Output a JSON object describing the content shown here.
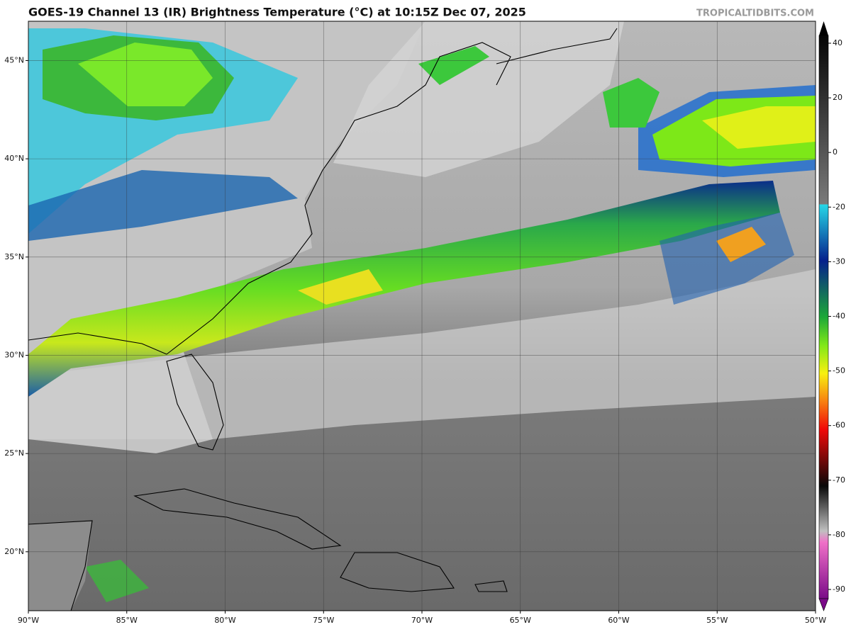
{
  "header": {
    "title": "GOES-19 Channel 13 (IR) Brightness Temperature (°C) at 10:15Z Dec 07, 2025",
    "source": "TROPICALTIDBITS.COM"
  },
  "map": {
    "lonlim": [
      -90,
      -50
    ],
    "latlim": [
      17,
      47
    ],
    "lon_ticks": [
      {
        "value": -90,
        "label": "90°W"
      },
      {
        "value": -85,
        "label": "85°W"
      },
      {
        "value": -80,
        "label": "80°W"
      },
      {
        "value": -75,
        "label": "75°W"
      },
      {
        "value": -70,
        "label": "70°W"
      },
      {
        "value": -65,
        "label": "65°W"
      },
      {
        "value": -60,
        "label": "60°W"
      },
      {
        "value": -55,
        "label": "55°W"
      },
      {
        "value": -50,
        "label": "50°W"
      }
    ],
    "lat_ticks": [
      {
        "value": 20,
        "label": "20°N"
      },
      {
        "value": 25,
        "label": "25°N"
      },
      {
        "value": 30,
        "label": "30°N"
      },
      {
        "value": 35,
        "label": "35°N"
      },
      {
        "value": 40,
        "label": "40°N"
      },
      {
        "value": 45,
        "label": "45°N"
      }
    ]
  },
  "colorbar": {
    "ticks": [
      40,
      20,
      0,
      -20,
      -30,
      -40,
      -50,
      -60,
      -70,
      -80,
      -90
    ]
  }
}
